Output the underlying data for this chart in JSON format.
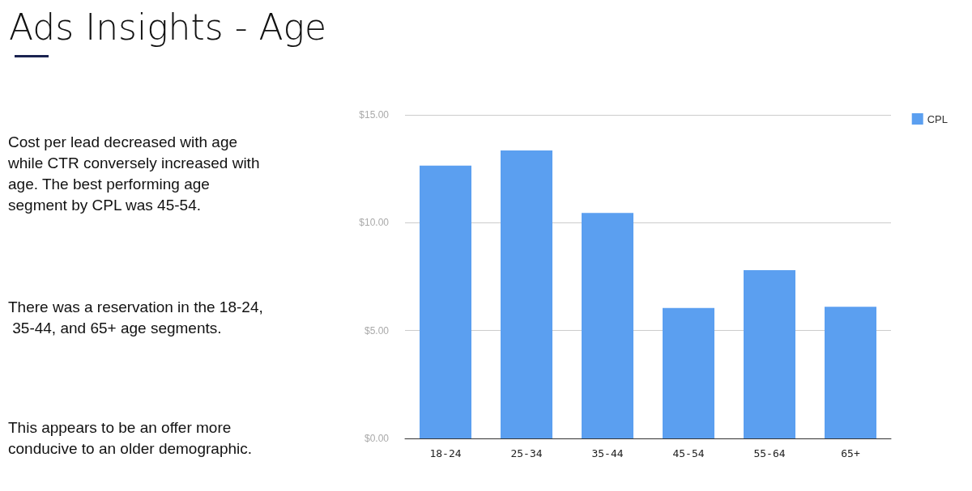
{
  "chart_data": {
    "type": "bar",
    "title": "Ads Insights - Age",
    "categories": [
      "18-24",
      "25-34",
      "35-44",
      "45-54",
      "55-64",
      "65+"
    ],
    "series": [
      {
        "name": "CPL",
        "color": "#5b9ff0",
        "values": [
          12.65,
          13.35,
          10.45,
          6.05,
          7.8,
          6.1
        ]
      }
    ],
    "ylim": [
      0,
      15
    ],
    "yticks": [
      {
        "value": 0,
        "label": "$0.00"
      },
      {
        "value": 5,
        "label": "$5.00"
      },
      {
        "value": 10,
        "label": "$10.00"
      },
      {
        "value": 15,
        "label": "$15.00"
      }
    ],
    "grid": "y",
    "legend": "top right",
    "annotations": [
      "Cost per lead decreased with age while CTR conversely increased with age. The best performing age segment by CPL was 45-54.",
      "There was a reservation in the 18-24, 35-44, and 65+ age segments.",
      "This appears to be an offer more conducive to an older demographic."
    ]
  }
}
